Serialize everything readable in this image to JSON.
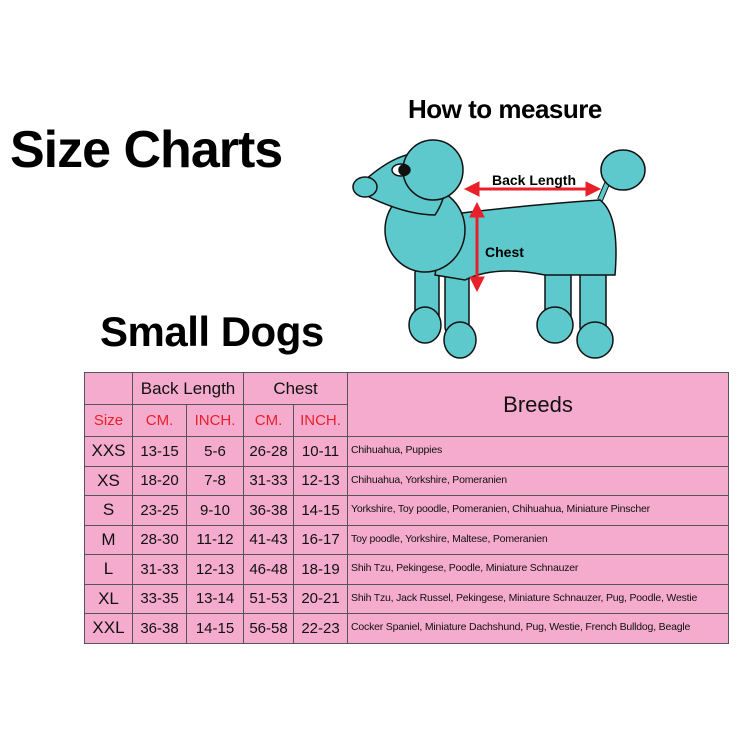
{
  "title": "Size Charts",
  "subtitle": "Small Dogs",
  "how_to_measure": {
    "title": "How to measure",
    "back_length_label": "Back Length",
    "chest_label": "Chest",
    "dog_color": "#5ec9cc",
    "arrow_color": "#e8202a"
  },
  "table": {
    "background": "#f5abcd",
    "group_headers": {
      "back_length": "Back Length",
      "chest": "Chest",
      "breeds": "Breeds"
    },
    "sub_headers": {
      "size": "Size",
      "back_cm": "CM.",
      "back_inch": "INCH.",
      "chest_cm": "CM.",
      "chest_inch": "INCH."
    },
    "rows": [
      {
        "size": "XXS",
        "back_cm": "13-15",
        "back_inch": "5-6",
        "chest_cm": "26-28",
        "chest_inch": "10-11",
        "breeds": "Chihuahua, Puppies"
      },
      {
        "size": "XS",
        "back_cm": "18-20",
        "back_inch": "7-8",
        "chest_cm": "31-33",
        "chest_inch": "12-13",
        "breeds": "Chihuahua, Yorkshire, Pomeranien"
      },
      {
        "size": "S",
        "back_cm": "23-25",
        "back_inch": "9-10",
        "chest_cm": "36-38",
        "chest_inch": "14-15",
        "breeds": "Yorkshire, Toy poodle, Pomeranien, Chihuahua, Miniature Pinscher"
      },
      {
        "size": "M",
        "back_cm": "28-30",
        "back_inch": "11-12",
        "chest_cm": "41-43",
        "chest_inch": "16-17",
        "breeds": "Toy poodle, Yorkshire, Maltese, Pomeranien"
      },
      {
        "size": "L",
        "back_cm": "31-33",
        "back_inch": "12-13",
        "chest_cm": "46-48",
        "chest_inch": "18-19",
        "breeds": "Shih Tzu, Pekingese, Poodle, Miniature Schnauzer"
      },
      {
        "size": "XL",
        "back_cm": "33-35",
        "back_inch": "13-14",
        "chest_cm": "51-53",
        "chest_inch": "20-21",
        "breeds": "Shih Tzu, Jack Russel, Pekingese, Miniature Schnauzer, Pug, Poodle, Westie"
      },
      {
        "size": "XXL",
        "back_cm": "36-38",
        "back_inch": "14-15",
        "chest_cm": "56-58",
        "chest_inch": "22-23",
        "breeds": "Cocker Spaniel, Miniature Dachshund, Pug, Westie, French Bulldog, Beagle"
      }
    ]
  }
}
